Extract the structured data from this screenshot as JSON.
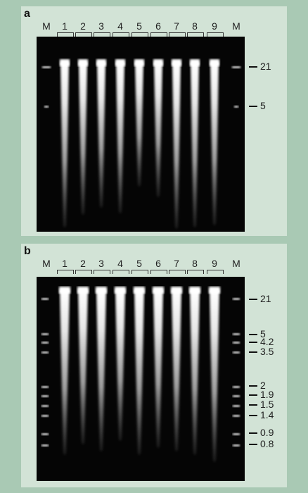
{
  "panel_a": {
    "letter": "a",
    "lane_labels": [
      "M",
      "1",
      "2",
      "3",
      "4",
      "5",
      "6",
      "7",
      "8",
      "9",
      "M"
    ],
    "size_markers": [
      "21",
      "5"
    ]
  },
  "panel_b": {
    "letter": "b",
    "lane_labels": [
      "M",
      "1",
      "2",
      "3",
      "4",
      "5",
      "6",
      "7",
      "8",
      "9",
      "M"
    ],
    "size_markers": [
      "21",
      "5",
      "4.2",
      "3.5",
      "2",
      "1.9",
      "1.5",
      "1.4",
      "0.9",
      "0.8"
    ]
  },
  "colors": {
    "background": "#a9c9b4",
    "panel": "#d2e3d6",
    "gel": "#050505"
  }
}
